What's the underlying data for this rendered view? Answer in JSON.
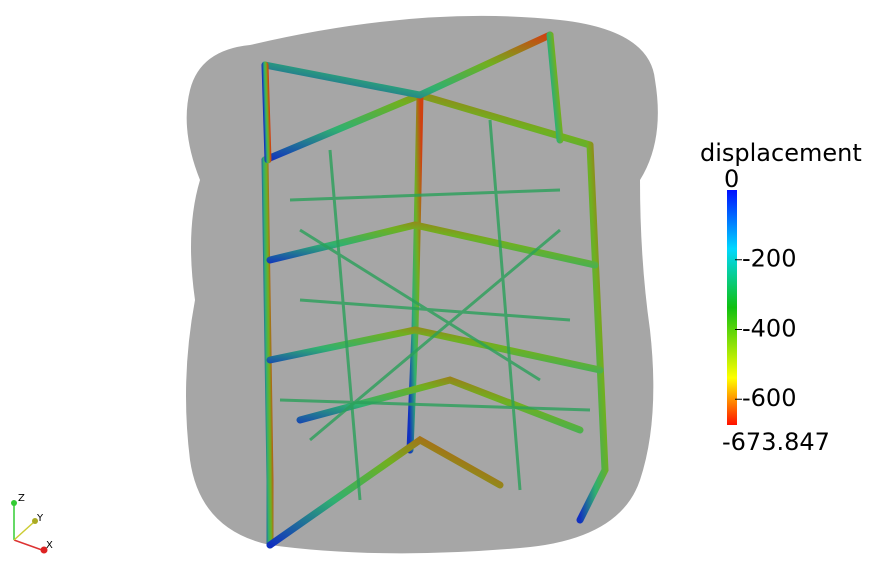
{
  "colorbar": {
    "title": "displacement",
    "min": -673.847,
    "max": 0,
    "ticks": [
      -200,
      -400,
      -600
    ]
  },
  "axes": {
    "z": "Z",
    "y": "Y",
    "x": "X"
  }
}
